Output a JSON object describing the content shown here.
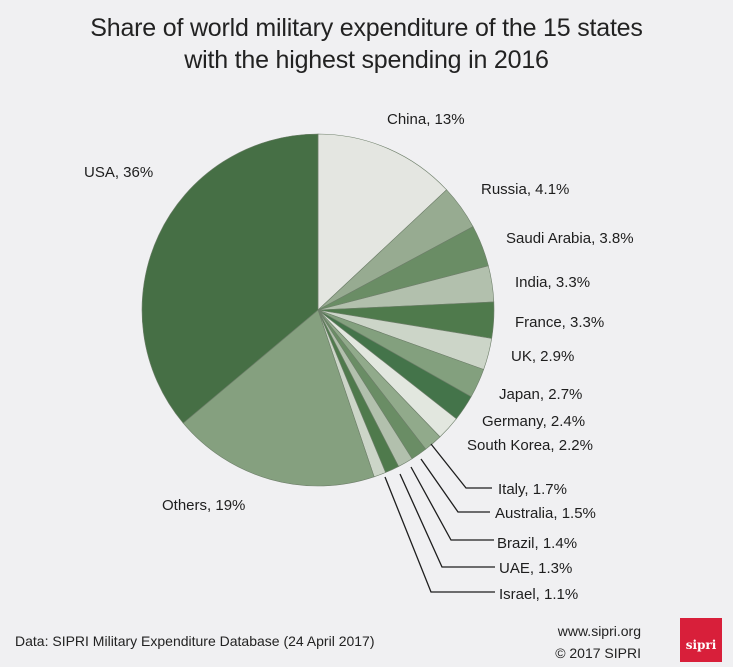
{
  "chart_data": {
    "type": "pie",
    "title": "Share of world military expenditure of the 15 states with the highest spending in 2016",
    "title_lines": [
      "Share of world military expenditure of the 15 states",
      "with the highest spending in 2016"
    ],
    "start": "top",
    "direction": "clockwise",
    "unit": "%",
    "slices": [
      {
        "name": "China",
        "value": 13,
        "label": "China, 13%",
        "color": "#e4e6e1"
      },
      {
        "name": "Russia",
        "value": 4.1,
        "label": "Russia, 4.1%",
        "color": "#97ab91"
      },
      {
        "name": "Saudi Arabia",
        "value": 3.8,
        "label": "Saudi Arabia, 3.8%",
        "color": "#6a8d65"
      },
      {
        "name": "India",
        "value": 3.3,
        "label": "India, 3.3%",
        "color": "#b2c0ad"
      },
      {
        "name": "France",
        "value": 3.3,
        "label": "France, 3.3%",
        "color": "#4f7a4c"
      },
      {
        "name": "UK",
        "value": 2.9,
        "label": "UK, 2.9%",
        "color": "#ccd5c8"
      },
      {
        "name": "Japan",
        "value": 2.7,
        "label": "Japan, 2.7%",
        "color": "#83a07e"
      },
      {
        "name": "Germany",
        "value": 2.4,
        "label": "Germany, 2.4%",
        "color": "#44744a"
      },
      {
        "name": "South Korea",
        "value": 2.2,
        "label": "South Korea, 2.2%",
        "color": "#e2e7df"
      },
      {
        "name": "Italy",
        "value": 1.7,
        "label": "Italy, 1.7%",
        "color": "#91aa8b"
      },
      {
        "name": "Australia",
        "value": 1.5,
        "label": "Australia, 1.5%",
        "color": "#6a8d65"
      },
      {
        "name": "Brazil",
        "value": 1.4,
        "label": "Brazil, 1.4%",
        "color": "#b2c0ad"
      },
      {
        "name": "UAE",
        "value": 1.3,
        "label": "UAE, 1.3%",
        "color": "#4f7a4c"
      },
      {
        "name": "Israel",
        "value": 1.1,
        "label": "Israel, 1.1%",
        "color": "#ccd5c8"
      },
      {
        "name": "Others",
        "value": 19,
        "label": "Others, 19%",
        "color": "#85a07f"
      },
      {
        "name": "USA",
        "value": 36,
        "label": "USA, 36%",
        "color": "#466f45"
      }
    ]
  },
  "footer": {
    "source": "Data: SIPRI Military Expenditure Database (24 April 2017)",
    "url": "www.sipri.org",
    "copyright": "© 2017 SIPRI",
    "logo_text": "sipri",
    "logo_color": "#d81f3a"
  }
}
